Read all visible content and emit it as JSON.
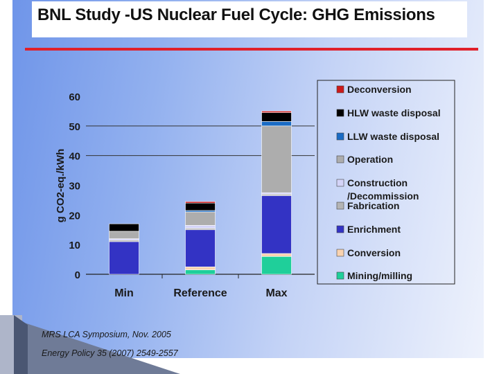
{
  "title": "BNL Study -US Nuclear Fuel Cycle:  GHG Emissions",
  "citations": [
    "MRS LCA Symposium, Nov.  2005",
    "Energy Policy  35 (2007) 2549-2557"
  ],
  "colors": {
    "title_rule": "#e0202a",
    "background_left": "#6f95e9",
    "background_right": "#eef2fc"
  },
  "chart_data": {
    "type": "bar",
    "stacked": true,
    "ylabel": "g CO2-eq./kWh",
    "ylim": [
      0,
      60
    ],
    "yticks": [
      0,
      10,
      20,
      30,
      40,
      50,
      60
    ],
    "gridlines": [
      50,
      40
    ],
    "categories": [
      "Min",
      "Reference",
      "Max"
    ],
    "legend_position": "right",
    "series": [
      {
        "name": "Mining/milling",
        "color": "#1fcf9a",
        "values": [
          0.0,
          1.5,
          6.0
        ]
      },
      {
        "name": "Conversion",
        "color": "#f9d3b0",
        "values": [
          0.0,
          1.0,
          1.0
        ]
      },
      {
        "name": "Enrichment",
        "color": "#3333c4",
        "values": [
          11.0,
          12.5,
          19.5
        ]
      },
      {
        "name": "Fabrication",
        "color": "#b4b4b4",
        "values": [
          0.5,
          0.5,
          0.5
        ]
      },
      {
        "name": "Construction /Decommission",
        "color": "#d4d4f8",
        "values": [
          0.5,
          1.0,
          0.5
        ]
      },
      {
        "name": "Operation",
        "color": "#adadad",
        "values": [
          2.5,
          4.5,
          22.5
        ]
      },
      {
        "name": "LLW waste disposal",
        "color": "#1a6bc4",
        "values": [
          0.0,
          0.5,
          1.5
        ]
      },
      {
        "name": "HLW waste disposal",
        "color": "#000000",
        "values": [
          2.5,
          2.5,
          3.0
        ]
      },
      {
        "name": "Deconversion",
        "color": "#cc1a1a",
        "values": [
          0.0,
          0.5,
          0.5
        ]
      }
    ]
  }
}
